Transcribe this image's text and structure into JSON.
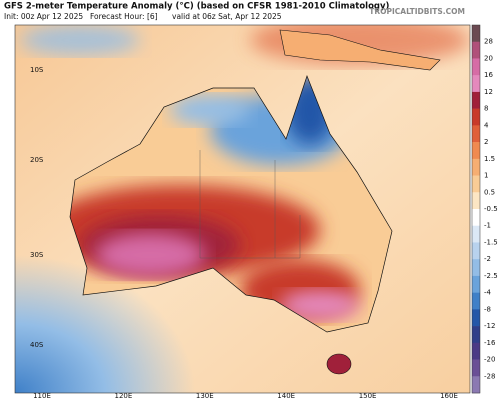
{
  "header": {
    "title": "GFS 2-meter Temperature Anomaly (°C) (based on CFSR 1981-2010 Climatology)",
    "init": "Init: 00z Apr 12 2025",
    "forecast": "Forecast Hour: [6]",
    "valid": "valid at 06z Sat, Apr 12 2025",
    "site": "TROPICALTIDBITS.COM"
  },
  "map": {
    "lat_labels": [
      "10S",
      "20S",
      "30S",
      "40S"
    ],
    "lon_labels": [
      "110E",
      "120E",
      "130E",
      "140E",
      "150E",
      "160E"
    ]
  },
  "colorbar": {
    "ticks": [
      28,
      20,
      16,
      12,
      8,
      4,
      2,
      1.5,
      1,
      0.5,
      -0.5,
      -1,
      -1.5,
      -2,
      -2.5,
      -4,
      -8,
      -12,
      -16,
      -20,
      -28
    ],
    "colors": [
      "#6b4a52",
      "#b0507a",
      "#d66ca6",
      "#e489bd",
      "#a0203a",
      "#c83a2a",
      "#e0603a",
      "#f08a50",
      "#f6ae72",
      "#f9cc96",
      "#fce6c4",
      "#ffffff",
      "#dbe8f6",
      "#b8d2ee",
      "#93bde6",
      "#6aa3db",
      "#3f80c8",
      "#2457a8",
      "#2f3f8a",
      "#4a3a86",
      "#6a4f96",
      "#8b79b2"
    ]
  }
}
